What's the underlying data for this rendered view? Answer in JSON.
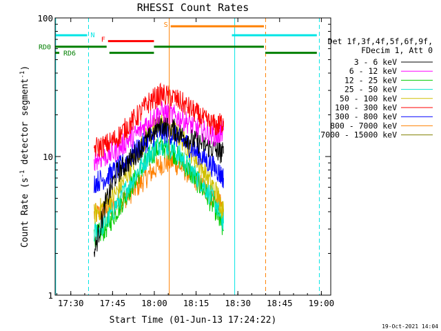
{
  "chart_data": {
    "type": "line",
    "title": "RHESSI Count Rates",
    "xlabel": "Start Time (01-Jun-13 17:24:22)",
    "ylabel_main": "Count Rate (s",
    "ylabel_sup1": "-1",
    "ylabel_mid": " detector segment",
    "ylabel_sup2": "-1",
    "ylabel_end": ")",
    "x_unit": "minutes since 17:24:22",
    "xlim": [
      0,
      99
    ],
    "ylim": [
      1,
      100
    ],
    "yscale": "log",
    "x_ticks": [
      {
        "label": "17:30",
        "value": 5.63
      },
      {
        "label": "17:45",
        "value": 20.63
      },
      {
        "label": "18:00",
        "value": 35.63
      },
      {
        "label": "18:15",
        "value": 50.63
      },
      {
        "label": "18:30",
        "value": 65.63
      },
      {
        "label": "18:45",
        "value": 80.63
      },
      {
        "label": "19:00",
        "value": 95.63
      }
    ],
    "y_ticks": [
      {
        "label": "1",
        "value": 1
      },
      {
        "label": "10",
        "value": 10
      },
      {
        "label": "100",
        "value": 100
      }
    ],
    "legend_title": [
      "Det 1f,3f,4f,5f,6f,9f,",
      "FDecim 1, Att 0"
    ],
    "series": [
      {
        "name": "3 - 6 keV",
        "color": "#000000",
        "x": [
          14,
          18,
          22,
          26,
          30,
          34,
          38,
          42,
          46,
          50,
          54,
          58,
          60.5
        ],
        "y": [
          2.0,
          4.5,
          7.5,
          9.0,
          11.0,
          14.0,
          17.0,
          16.0,
          14.0,
          13.0,
          12.0,
          11.0,
          10.5
        ]
      },
      {
        "name": "6 - 12 keV",
        "color": "#ff00ff",
        "x": [
          14,
          18,
          22,
          26,
          30,
          34,
          38,
          42,
          46,
          50,
          54,
          58,
          60.5
        ],
        "y": [
          9.5,
          10.0,
          11.0,
          13.0,
          15.0,
          18.5,
          21.0,
          20.0,
          18.5,
          16.5,
          15.0,
          14.0,
          15.5
        ]
      },
      {
        "name": "12 - 25 keV",
        "color": "#00cc00",
        "x": [
          14,
          18,
          22,
          26,
          30,
          34,
          38,
          42,
          46,
          50,
          54,
          58,
          60.5
        ],
        "y": [
          2.6,
          3.0,
          4.0,
          5.5,
          7.5,
          10.0,
          12.0,
          11.0,
          9.0,
          7.0,
          5.5,
          4.0,
          2.9
        ]
      },
      {
        "name": "25 - 50 keV",
        "color": "#00e5cc",
        "x": [
          14,
          18,
          22,
          26,
          30,
          34,
          38,
          42,
          46,
          50,
          54,
          58,
          60.5
        ],
        "y": [
          2.8,
          3.3,
          4.5,
          6.0,
          8.0,
          10.5,
          12.5,
          11.5,
          9.5,
          7.5,
          6.0,
          4.5,
          3.3
        ]
      },
      {
        "name": "50 - 100 keV",
        "color": "#d0c000",
        "x": [
          14,
          18,
          22,
          26,
          30,
          34,
          38,
          42,
          46,
          50,
          54,
          58,
          60.5
        ],
        "y": [
          3.8,
          4.5,
          5.5,
          7.5,
          11.0,
          15.0,
          17.5,
          16.0,
          13.0,
          10.0,
          7.5,
          5.5,
          4.0
        ]
      },
      {
        "name": "100 - 300 keV",
        "color": "#ff0000",
        "x": [
          14,
          18,
          22,
          26,
          30,
          34,
          38,
          42,
          46,
          50,
          54,
          58,
          60.5
        ],
        "y": [
          11.5,
          12.0,
          13.5,
          16.5,
          20.0,
          25.0,
          28.0,
          27.0,
          24.0,
          21.0,
          18.0,
          16.5,
          18.0
        ]
      },
      {
        "name": "300 - 800 keV",
        "color": "#0000ff",
        "x": [
          14,
          18,
          22,
          26,
          30,
          34,
          38,
          42,
          46,
          50,
          54,
          58,
          60.5
        ],
        "y": [
          6.5,
          7.0,
          8.0,
          9.5,
          11.5,
          13.5,
          15.0,
          14.5,
          13.0,
          11.0,
          9.5,
          8.0,
          7.0
        ]
      },
      {
        "name": "800 - 7000 keV",
        "color": "#ff8000",
        "x": [
          14,
          18,
          22,
          26,
          30,
          34,
          38,
          42,
          46,
          50,
          54,
          58,
          60.5
        ],
        "y": [
          3.8,
          4.0,
          4.5,
          5.2,
          6.2,
          7.5,
          8.8,
          9.2,
          8.2,
          7.0,
          5.8,
          4.8,
          4.2
        ]
      },
      {
        "name": "7000 - 15000 keV",
        "color": "#808000",
        "x": [],
        "y": []
      }
    ],
    "vertical_lines": [
      {
        "x": 0.2,
        "color": "#00e5e5",
        "style": "solid"
      },
      {
        "x": 12.0,
        "color": "#00e5e5",
        "style": "dashed"
      },
      {
        "x": 41.0,
        "color": "#ff8000",
        "style": "solid"
      },
      {
        "x": 64.5,
        "color": "#00e5e5",
        "style": "solid"
      },
      {
        "x": 75.6,
        "color": "#ff8000",
        "style": "dashed"
      },
      {
        "x": 94.9,
        "color": "#00e5e5",
        "style": "dashed"
      }
    ],
    "flag_bars": [
      {
        "label": "N",
        "color": "#00e5e5",
        "y": 75,
        "segments": [
          [
            0,
            11.5
          ],
          [
            63.5,
            94
          ]
        ]
      },
      {
        "label": "S",
        "color": "#ff8000",
        "y": 87,
        "segments": [
          [
            41.5,
            75
          ]
        ]
      },
      {
        "label": "F",
        "color": "#ff0000",
        "y": 68,
        "segments": [
          [
            19,
            35.5
          ]
        ]
      },
      {
        "label": "RD0",
        "color": "#007f00",
        "y": 62,
        "segments": [
          [
            0,
            18.5
          ],
          [
            35.5,
            75
          ]
        ]
      },
      {
        "label": "RD6",
        "color": "#007f00",
        "y": 56,
        "segments": [
          [
            0,
            1.5
          ],
          [
            19.5,
            35.5
          ],
          [
            75.5,
            94
          ]
        ]
      }
    ],
    "legend_placement": "right",
    "grid": false
  },
  "footer": {
    "timestamp": "19-Oct-2021 14:04"
  }
}
